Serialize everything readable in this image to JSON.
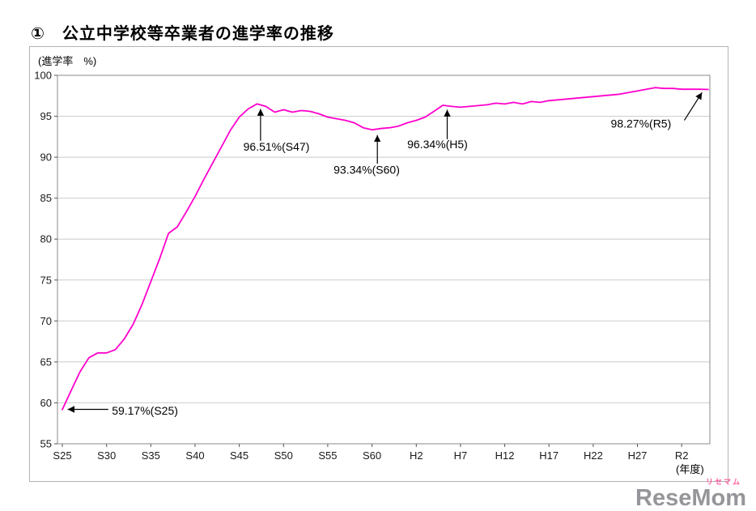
{
  "page": {
    "title": "①　公立中学校等卒業者の進学率の推移"
  },
  "chart_data": {
    "type": "line",
    "title": "公立中学校等卒業者の進学率の推移",
    "ylabel": "(進学率　%)",
    "xlabel": "(年度)",
    "ylim": [
      55,
      100
    ],
    "ytick_step": 5,
    "grid": true,
    "legend": "none",
    "line_color": "#ff00cc",
    "start_year": 1950,
    "series_name": "進学率(%)",
    "values": [
      59.17,
      61.5,
      63.8,
      65.5,
      66.1,
      66.1,
      66.5,
      67.8,
      69.6,
      72.0,
      74.8,
      77.6,
      80.7,
      81.5,
      83.3,
      85.2,
      87.3,
      89.3,
      91.3,
      93.3,
      94.9,
      95.9,
      96.51,
      96.2,
      95.5,
      95.8,
      95.5,
      95.7,
      95.6,
      95.3,
      94.9,
      94.7,
      94.5,
      94.2,
      93.6,
      93.34,
      93.5,
      93.6,
      93.8,
      94.2,
      94.5,
      94.9,
      95.6,
      96.34,
      96.2,
      96.1,
      96.2,
      96.3,
      96.4,
      96.6,
      96.5,
      96.7,
      96.5,
      96.8,
      96.7,
      96.9,
      97.0,
      97.1,
      97.2,
      97.3,
      97.4,
      97.5,
      97.6,
      97.7,
      97.9,
      98.1,
      98.3,
      98.5,
      98.4,
      98.4,
      98.3,
      98.3,
      98.3,
      98.27
    ],
    "xticks": [
      {
        "label": "S25",
        "year": 1950
      },
      {
        "label": "S30",
        "year": 1955
      },
      {
        "label": "S35",
        "year": 1960
      },
      {
        "label": "S40",
        "year": 1965
      },
      {
        "label": "S45",
        "year": 1970
      },
      {
        "label": "S50",
        "year": 1975
      },
      {
        "label": "S55",
        "year": 1980
      },
      {
        "label": "S60",
        "year": 1985
      },
      {
        "label": "H2",
        "year": 1990
      },
      {
        "label": "H7",
        "year": 1995
      },
      {
        "label": "H12",
        "year": 2000
      },
      {
        "label": "H17",
        "year": 2005
      },
      {
        "label": "H22",
        "year": 2010
      },
      {
        "label": "H27",
        "year": 2015
      },
      {
        "label": "R2",
        "year": 2020
      }
    ],
    "annotations": [
      {
        "text": "59.17%(S25)",
        "anchor": "start",
        "text_pos": [
          1955.6,
          58.55
        ],
        "arrow_tail": [
          1955.2,
          59.2
        ],
        "arrow_tip": [
          1950.6,
          59.2
        ]
      },
      {
        "text": "96.51%(S47)",
        "anchor": "middle",
        "text_pos": [
          1974.2,
          90.8
        ],
        "arrow_tail": [
          1972.4,
          92.0
        ],
        "arrow_tip": [
          1972.4,
          95.9
        ]
      },
      {
        "text": "93.34%(S60)",
        "anchor": "middle",
        "text_pos": [
          1984.4,
          88.0
        ],
        "arrow_tail": [
          1985.6,
          89.2
        ],
        "arrow_tip": [
          1985.6,
          92.7
        ]
      },
      {
        "text": "96.34%(H5)",
        "anchor": "middle",
        "text_pos": [
          1992.4,
          91.1
        ],
        "arrow_tail": [
          1993.5,
          92.2
        ],
        "arrow_tip": [
          1993.5,
          95.8
        ]
      },
      {
        "text": "98.27%(R5)",
        "anchor": "middle",
        "text_pos": [
          2015.4,
          93.6
        ],
        "arrow_tail": [
          2020.3,
          94.5
        ],
        "arrow_tip": [
          2022.3,
          97.9
        ]
      }
    ]
  },
  "watermark": {
    "text": "ReseMom",
    "kana": "リセマム"
  }
}
